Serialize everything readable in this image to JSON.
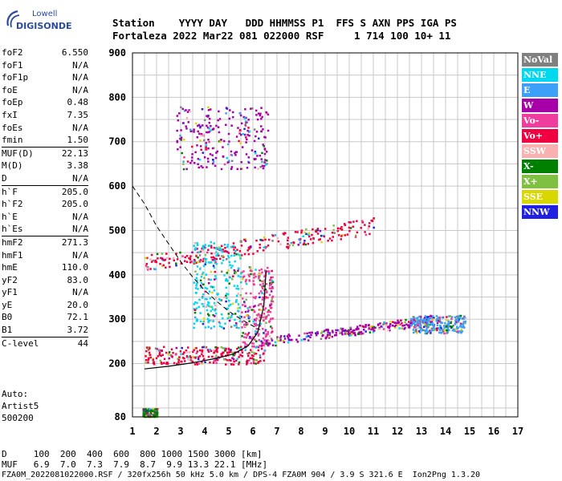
{
  "logo": {
    "top": "Lowell",
    "bottom": "DIGISONDE"
  },
  "header": {
    "line1": "Station    YYYY DAY   DDD HHMMSS P1  FFS S AXN PPS IGA PS",
    "line2": "Fortaleza 2022 Mar22 081 022000 RSF     1 714 100 10+ 11"
  },
  "params": [
    {
      "name": "foF2",
      "value": "6.550"
    },
    {
      "name": "foF1",
      "value": "N/A"
    },
    {
      "name": "foF1p",
      "value": "N/A"
    },
    {
      "name": "foE",
      "value": "N/A"
    },
    {
      "name": "foEp",
      "value": "0.48"
    },
    {
      "name": "fxI",
      "value": "7.35"
    },
    {
      "name": "foEs",
      "value": "N/A"
    },
    {
      "name": "fmin",
      "value": "1.50"
    },
    {
      "name": "MUF(D)",
      "value": "22.13"
    },
    {
      "name": "M(D)",
      "value": "3.38"
    },
    {
      "name": "D",
      "value": "N/A"
    },
    {
      "name": "h`F",
      "value": "205.0"
    },
    {
      "name": "h`F2",
      "value": "205.0"
    },
    {
      "name": "h`E",
      "value": "N/A"
    },
    {
      "name": "h`Es",
      "value": "N/A"
    },
    {
      "name": "hmF2",
      "value": "271.3"
    },
    {
      "name": "hmF1",
      "value": "N/A"
    },
    {
      "name": "hmE",
      "value": "110.0"
    },
    {
      "name": "yF2",
      "value": "83.0"
    },
    {
      "name": "yF1",
      "value": "N/A"
    },
    {
      "name": "yE",
      "value": "20.0"
    },
    {
      "name": "B0",
      "value": "72.1"
    },
    {
      "name": "B1",
      "value": "3.72"
    },
    {
      "name": "C-level",
      "value": "44"
    }
  ],
  "auto": {
    "line1": "Auto:",
    "line2": "Artist5",
    "line3": "500200"
  },
  "legend": [
    {
      "label": "NoVal",
      "color": "#808080"
    },
    {
      "label": "NNE",
      "color": "#00d8f0"
    },
    {
      "label": "E",
      "color": "#3ca0f8"
    },
    {
      "label": "W",
      "color": "#a800a8"
    },
    {
      "label": "Vo-",
      "color": "#f03c9c"
    },
    {
      "label": "Vo+",
      "color": "#f00040"
    },
    {
      "label": "SSW",
      "color": "#f8b0b0"
    },
    {
      "label": "X-",
      "color": "#008000"
    },
    {
      "label": "X+",
      "color": "#80c040"
    },
    {
      "label": "SSE",
      "color": "#d8d800"
    },
    {
      "label": "NNW",
      "color": "#2020e0"
    }
  ],
  "bottom": {
    "line1": "D     100  200  400  600  800 1000 1500 3000 [km]",
    "line2": "MUF   6.9  7.0  7.3  7.9  8.7  9.9 13.3 22.1 [MHz]",
    "line3": "FZA0M_2022081022000.RSF / 320fx256h 50 kHz 5.0 km / DPS-4 FZA0M 904 / 3.9 S 321.6 E  Ion2Png 1.3.20"
  },
  "chart_data": {
    "type": "scatter",
    "title": "",
    "xlabel": "",
    "ylabel": "",
    "xlim": [
      1,
      17
    ],
    "ylim": [
      80,
      900
    ],
    "x_ticks": [
      1,
      2,
      3,
      4,
      5,
      6,
      7,
      8,
      9,
      10,
      11,
      12,
      13,
      14,
      15,
      16,
      17
    ],
    "y_ticks": [
      80,
      200,
      300,
      400,
      500,
      600,
      700,
      800,
      900
    ],
    "grid": true,
    "echo_regions": [
      {
        "name": "o-trace F",
        "x": [
          1.5,
          6.5
        ],
        "y": [
          200,
          240
        ],
        "color": "#f00040"
      },
      {
        "name": "F2 cusp",
        "x": [
          5.5,
          6.8
        ],
        "y": [
          240,
          420
        ],
        "color": "#f03c9c"
      },
      {
        "name": "x-trace",
        "x": [
          6.5,
          13.5
        ],
        "y": [
          240,
          310
        ],
        "color": "#a800a8"
      },
      {
        "name": "oblique",
        "x": [
          12.5,
          14.8
        ],
        "y": [
          270,
          310
        ],
        "color": "#3ca0f8"
      },
      {
        "name": "2nd hop",
        "x": [
          1.5,
          11.0
        ],
        "y": [
          410,
          530
        ],
        "color": "#f00040"
      },
      {
        "name": "3rd hop",
        "x": [
          2.8,
          6.6
        ],
        "y": [
          640,
          780
        ],
        "color": "#a800a8"
      },
      {
        "name": "spread",
        "x": [
          3.5,
          5.5
        ],
        "y": [
          280,
          480
        ],
        "color": "#00d8f0"
      },
      {
        "name": "low",
        "x": [
          1.4,
          2.0
        ],
        "y": [
          82,
          100
        ],
        "color": "#008000"
      }
    ],
    "profile_curve": {
      "x": [
        1.5,
        2.5,
        3.5,
        4.5,
        5.2,
        5.8,
        6.2,
        6.45,
        6.55
      ],
      "y": [
        188,
        194,
        202,
        212,
        222,
        240,
        270,
        330,
        410
      ]
    },
    "muf_curve": {
      "x": [
        1.0,
        1.5,
        2.0,
        2.5,
        3.0,
        3.5,
        4.0,
        4.5,
        5.0,
        5.5,
        6.0,
        6.3
      ],
      "y": [
        600,
        560,
        510,
        470,
        430,
        395,
        365,
        340,
        318,
        300,
        285,
        276
      ]
    }
  }
}
